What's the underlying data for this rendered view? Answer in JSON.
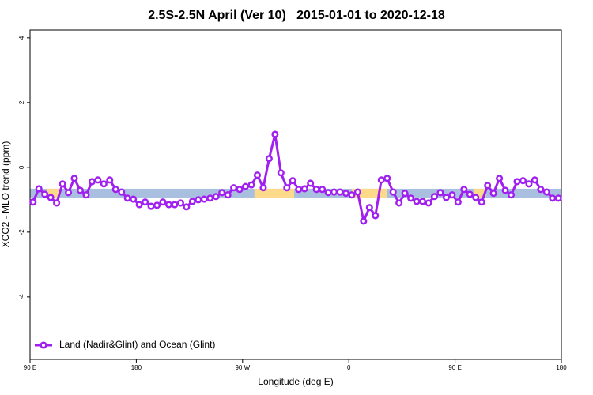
{
  "chart_data": {
    "type": "line",
    "title": "2.5S-2.5N April (Ver 10)   2015-01-01 to 2020-12-18",
    "x_label": "Longitude (deg E)",
    "y_label": "XCO2 - MLO trend (ppm)",
    "xlim": [
      90,
      540
    ],
    "ylim": [
      -5.93,
      4.24
    ],
    "xticks": [
      {
        "value": 90,
        "label": "90 E"
      },
      180,
      {
        "value": 270,
        "label": "90 W"
      },
      {
        "value": 360,
        "label": "0"
      },
      {
        "value": 450,
        "label": "90 E"
      },
      {
        "value": 540,
        "label": "180"
      }
    ],
    "yticks": [
      -4,
      -2,
      0,
      2,
      4
    ],
    "legend": "bottom-left",
    "bands": {
      "ymin": -0.93,
      "ymax": -0.66,
      "segments": [
        {
          "x0": 90,
          "x1": 540,
          "color": "#a8bfe0"
        },
        {
          "x0": 104.7,
          "x1": 114.8,
          "color": "#fdd98a"
        },
        {
          "x0": 280,
          "x1": 313.7,
          "color": "#fdd98a"
        },
        {
          "x0": 362.5,
          "x1": 392.7,
          "color": "#fdd98a"
        },
        {
          "x0": 466,
          "x1": 476,
          "color": "#fdd98a"
        }
      ]
    },
    "x": [
      92.5,
      97.5,
      102.5,
      107.5,
      112.5,
      117.5,
      122.5,
      127.5,
      132.5,
      137.5,
      142.5,
      147.5,
      152.5,
      157.5,
      162.5,
      167.5,
      172.5,
      177.5,
      182.5,
      187.5,
      192.5,
      197.5,
      202.5,
      207.5,
      212.5,
      217.5,
      222.5,
      227.5,
      232.5,
      237.5,
      242.5,
      247.5,
      252.5,
      257.5,
      262.5,
      267.5,
      272.5,
      277.5,
      282.5,
      287.5,
      292.5,
      297.5,
      302.5,
      307.5,
      312.5,
      317.5,
      322.5,
      327.5,
      332.5,
      337.5,
      342.5,
      347.5,
      352.5,
      357.5,
      362.5,
      367.5,
      372.5,
      377.5,
      382.5,
      387.5,
      392.5,
      397.5,
      402.5,
      407.5,
      412.5,
      417.5,
      422.5,
      427.5,
      432.5,
      437.5,
      442.5,
      447.5,
      452.5,
      457.5,
      462.5,
      467.5,
      472.5,
      477.5,
      482.5,
      487.5,
      492.5,
      497.5,
      502.5,
      507.5,
      512.5,
      517.5,
      522.5,
      527.5,
      532.5,
      537.5
    ],
    "series": [
      {
        "name": "Land (Nadir&Glint) and Ocean (Glint)",
        "color": "#a020f0",
        "values": [
          -1.07,
          -0.66,
          -0.83,
          -0.93,
          -1.1,
          -0.51,
          -0.78,
          -0.34,
          -0.71,
          -0.85,
          -0.44,
          -0.39,
          -0.51,
          -0.39,
          -0.68,
          -0.76,
          -0.95,
          -0.98,
          -1.15,
          -1.07,
          -1.2,
          -1.17,
          -1.07,
          -1.15,
          -1.15,
          -1.1,
          -1.22,
          -1.05,
          -1.0,
          -0.98,
          -0.95,
          -0.9,
          -0.78,
          -0.85,
          -0.63,
          -0.68,
          -0.59,
          -0.54,
          -0.24,
          -0.63,
          0.27,
          1.02,
          -0.17,
          -0.63,
          -0.41,
          -0.68,
          -0.66,
          -0.49,
          -0.68,
          -0.68,
          -0.78,
          -0.76,
          -0.76,
          -0.8,
          -0.85,
          -0.76,
          -1.66,
          -1.24,
          -1.49,
          -0.39,
          -0.34,
          -0.76,
          -1.1,
          -0.8,
          -0.95,
          -1.05,
          -1.05,
          -1.1,
          -0.9,
          -0.78,
          -0.93,
          -0.85,
          -1.07,
          -0.68,
          -0.83,
          -0.93,
          -1.07,
          -0.56,
          -0.8,
          -0.34,
          -0.71,
          -0.85,
          -0.44,
          -0.41,
          -0.51,
          -0.39,
          -0.68,
          -0.76,
          -0.95,
          -0.95
        ]
      }
    ]
  }
}
